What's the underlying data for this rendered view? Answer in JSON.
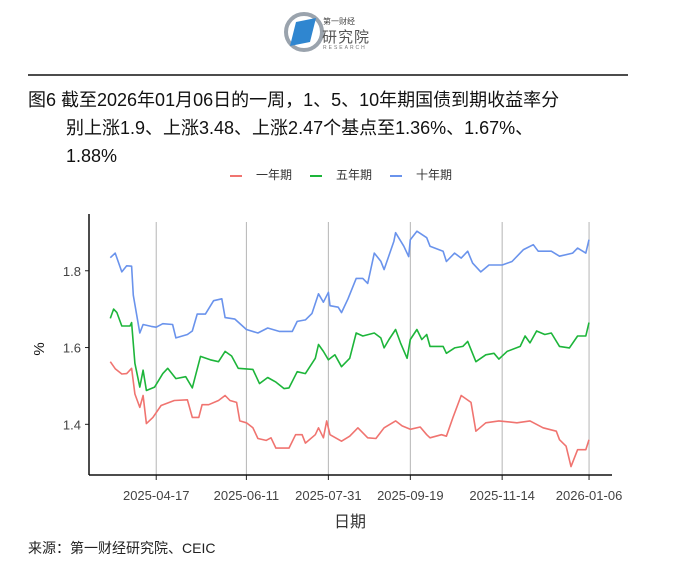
{
  "header": {
    "logo_top": "第一财经",
    "logo_main": "研究院",
    "logo_sub": "RESEARCH"
  },
  "title": {
    "line1": "图6  截至2026年01月06日的一周，1、5、10年期国债到期收益率分",
    "line2": "别上涨1.9、上涨3.48、上涨2.47个基点至1.36%、1.67%、",
    "line3": "1.88%"
  },
  "source": "来源：第一财经研究院、CEIC",
  "chart_data": {
    "type": "line",
    "xlabel": "日期",
    "ylabel": "%",
    "xlim": [
      "2025-03-07",
      "2026-01-20"
    ],
    "ylim": [
      1.268,
      1.927
    ],
    "x_ticks": [
      "2025-04-17",
      "2025-06-11",
      "2025-07-31",
      "2025-09-19",
      "2025-11-14",
      "2026-01-06"
    ],
    "y_ticks": [
      1.4,
      1.6,
      1.8
    ],
    "grid": "vertical major",
    "legend": "top",
    "series": [
      {
        "name": "一年期",
        "color": "#f07470",
        "points": [
          [
            "2025-03-20",
            1.563
          ],
          [
            "2025-03-23",
            1.545
          ],
          [
            "2025-03-27",
            1.531
          ],
          [
            "2025-03-30",
            1.532
          ],
          [
            "2025-04-02",
            1.546
          ],
          [
            "2025-04-04",
            1.479
          ],
          [
            "2025-04-07",
            1.444
          ],
          [
            "2025-04-09",
            1.475
          ],
          [
            "2025-04-11",
            1.402
          ],
          [
            "2025-04-15",
            1.418
          ],
          [
            "2025-04-20",
            1.449
          ],
          [
            "2025-04-28",
            1.462
          ],
          [
            "2025-05-06",
            1.464
          ],
          [
            "2025-05-09",
            1.418
          ],
          [
            "2025-05-13",
            1.418
          ],
          [
            "2025-05-15",
            1.451
          ],
          [
            "2025-05-19",
            1.451
          ],
          [
            "2025-05-25",
            1.462
          ],
          [
            "2025-05-29",
            1.475
          ],
          [
            "2025-06-01",
            1.462
          ],
          [
            "2025-06-05",
            1.457
          ],
          [
            "2025-06-07",
            1.409
          ],
          [
            "2025-06-11",
            1.404
          ],
          [
            "2025-06-15",
            1.391
          ],
          [
            "2025-06-18",
            1.363
          ],
          [
            "2025-06-23",
            1.358
          ],
          [
            "2025-06-26",
            1.365
          ],
          [
            "2025-06-29",
            1.338
          ],
          [
            "2025-07-07",
            1.338
          ],
          [
            "2025-07-11",
            1.373
          ],
          [
            "2025-07-15",
            1.373
          ],
          [
            "2025-07-17",
            1.351
          ],
          [
            "2025-07-23",
            1.373
          ],
          [
            "2025-07-25",
            1.391
          ],
          [
            "2025-07-28",
            1.365
          ],
          [
            "2025-07-30",
            1.409
          ],
          [
            "2025-08-01",
            1.373
          ],
          [
            "2025-08-08",
            1.356
          ],
          [
            "2025-08-13",
            1.369
          ],
          [
            "2025-08-18",
            1.391
          ],
          [
            "2025-08-24",
            1.365
          ],
          [
            "2025-08-29",
            1.363
          ],
          [
            "2025-09-03",
            1.391
          ],
          [
            "2025-09-10",
            1.409
          ],
          [
            "2025-09-14",
            1.396
          ],
          [
            "2025-09-19",
            1.387
          ],
          [
            "2025-09-25",
            1.393
          ],
          [
            "2025-09-29",
            1.373
          ],
          [
            "2025-10-01",
            1.365
          ],
          [
            "2025-10-08",
            1.373
          ],
          [
            "2025-10-11",
            1.369
          ],
          [
            "2025-10-15",
            1.418
          ],
          [
            "2025-10-20",
            1.475
          ],
          [
            "2025-10-26",
            1.457
          ],
          [
            "2025-10-29",
            1.382
          ],
          [
            "2025-11-04",
            1.404
          ],
          [
            "2025-11-12",
            1.409
          ],
          [
            "2025-11-23",
            1.404
          ],
          [
            "2025-12-01",
            1.409
          ],
          [
            "2025-12-09",
            1.391
          ],
          [
            "2025-12-17",
            1.382
          ],
          [
            "2025-12-19",
            1.36
          ],
          [
            "2025-12-23",
            1.343
          ],
          [
            "2025-12-26",
            1.29
          ],
          [
            "2025-12-30",
            1.334
          ],
          [
            "2026-01-04",
            1.334
          ],
          [
            "2026-01-06",
            1.36
          ]
        ]
      },
      {
        "name": "五年期",
        "color": "#1db53a",
        "points": [
          [
            "2025-03-20",
            1.676
          ],
          [
            "2025-03-22",
            1.7
          ],
          [
            "2025-03-24",
            1.691
          ],
          [
            "2025-03-27",
            1.656
          ],
          [
            "2025-04-01",
            1.656
          ],
          [
            "2025-04-02",
            1.665
          ],
          [
            "2025-04-04",
            1.559
          ],
          [
            "2025-04-07",
            1.497
          ],
          [
            "2025-04-09",
            1.541
          ],
          [
            "2025-04-11",
            1.488
          ],
          [
            "2025-04-16",
            1.497
          ],
          [
            "2025-04-21",
            1.532
          ],
          [
            "2025-04-24",
            1.546
          ],
          [
            "2025-04-29",
            1.519
          ],
          [
            "2025-05-05",
            1.524
          ],
          [
            "2025-05-09",
            1.495
          ],
          [
            "2025-05-14",
            1.577
          ],
          [
            "2025-05-20",
            1.568
          ],
          [
            "2025-05-25",
            1.563
          ],
          [
            "2025-05-29",
            1.59
          ],
          [
            "2025-06-02",
            1.578
          ],
          [
            "2025-06-06",
            1.546
          ],
          [
            "2025-06-15",
            1.543
          ],
          [
            "2025-06-19",
            1.506
          ],
          [
            "2025-06-24",
            1.522
          ],
          [
            "2025-06-29",
            1.51
          ],
          [
            "2025-07-04",
            1.493
          ],
          [
            "2025-07-07",
            1.495
          ],
          [
            "2025-07-12",
            1.537
          ],
          [
            "2025-07-17",
            1.532
          ],
          [
            "2025-07-23",
            1.572
          ],
          [
            "2025-07-25",
            1.608
          ],
          [
            "2025-07-28",
            1.59
          ],
          [
            "2025-07-31",
            1.568
          ],
          [
            "2025-08-04",
            1.581
          ],
          [
            "2025-08-08",
            1.55
          ],
          [
            "2025-08-13",
            1.572
          ],
          [
            "2025-08-17",
            1.638
          ],
          [
            "2025-08-21",
            1.63
          ],
          [
            "2025-08-28",
            1.638
          ],
          [
            "2025-09-01",
            1.625
          ],
          [
            "2025-09-03",
            1.599
          ],
          [
            "2025-09-06",
            1.621
          ],
          [
            "2025-09-10",
            1.647
          ],
          [
            "2025-09-13",
            1.612
          ],
          [
            "2025-09-17",
            1.572
          ],
          [
            "2025-09-19",
            1.621
          ],
          [
            "2025-09-23",
            1.647
          ],
          [
            "2025-09-26",
            1.621
          ],
          [
            "2025-09-29",
            1.634
          ],
          [
            "2025-10-01",
            1.603
          ],
          [
            "2025-10-09",
            1.603
          ],
          [
            "2025-10-11",
            1.585
          ],
          [
            "2025-10-16",
            1.599
          ],
          [
            "2025-10-21",
            1.603
          ],
          [
            "2025-10-24",
            1.616
          ],
          [
            "2025-10-29",
            1.563
          ],
          [
            "2025-11-04",
            1.581
          ],
          [
            "2025-11-09",
            1.585
          ],
          [
            "2025-11-12",
            1.57
          ],
          [
            "2025-11-17",
            1.59
          ],
          [
            "2025-11-25",
            1.603
          ],
          [
            "2025-11-28",
            1.63
          ],
          [
            "2025-12-01",
            1.612
          ],
          [
            "2025-12-05",
            1.643
          ],
          [
            "2025-12-10",
            1.634
          ],
          [
            "2025-12-14",
            1.638
          ],
          [
            "2025-12-19",
            1.603
          ],
          [
            "2025-12-25",
            1.599
          ],
          [
            "2025-12-30",
            1.63
          ],
          [
            "2026-01-04",
            1.63
          ],
          [
            "2026-01-06",
            1.665
          ]
        ]
      },
      {
        "name": "十年期",
        "color": "#6a93ec",
        "points": [
          [
            "2025-03-20",
            1.834
          ],
          [
            "2025-03-23",
            1.846
          ],
          [
            "2025-03-27",
            1.797
          ],
          [
            "2025-03-30",
            1.813
          ],
          [
            "2025-04-02",
            1.812
          ],
          [
            "2025-04-03",
            1.736
          ],
          [
            "2025-04-07",
            1.638
          ],
          [
            "2025-04-09",
            1.66
          ],
          [
            "2025-04-14",
            1.655
          ],
          [
            "2025-04-17",
            1.653
          ],
          [
            "2025-04-21",
            1.662
          ],
          [
            "2025-04-27",
            1.66
          ],
          [
            "2025-04-29",
            1.625
          ],
          [
            "2025-05-06",
            1.634
          ],
          [
            "2025-05-09",
            1.643
          ],
          [
            "2025-05-12",
            1.687
          ],
          [
            "2025-05-17",
            1.687
          ],
          [
            "2025-05-22",
            1.722
          ],
          [
            "2025-05-27",
            1.727
          ],
          [
            "2025-05-29",
            1.678
          ],
          [
            "2025-06-04",
            1.674
          ],
          [
            "2025-06-11",
            1.647
          ],
          [
            "2025-06-18",
            1.638
          ],
          [
            "2025-06-24",
            1.651
          ],
          [
            "2025-07-01",
            1.642
          ],
          [
            "2025-07-09",
            1.642
          ],
          [
            "2025-07-12",
            1.668
          ],
          [
            "2025-07-17",
            1.672
          ],
          [
            "2025-07-21",
            1.689
          ],
          [
            "2025-07-25",
            1.74
          ],
          [
            "2025-07-28",
            1.718
          ],
          [
            "2025-07-31",
            1.744
          ],
          [
            "2025-08-01",
            1.709
          ],
          [
            "2025-08-06",
            1.705
          ],
          [
            "2025-08-08",
            1.691
          ],
          [
            "2025-08-12",
            1.727
          ],
          [
            "2025-08-17",
            1.78
          ],
          [
            "2025-08-21",
            1.78
          ],
          [
            "2025-08-24",
            1.767
          ],
          [
            "2025-08-28",
            1.846
          ],
          [
            "2025-09-01",
            1.825
          ],
          [
            "2025-09-03",
            1.803
          ],
          [
            "2025-09-09",
            1.877
          ],
          [
            "2025-09-10",
            1.899
          ],
          [
            "2025-09-15",
            1.864
          ],
          [
            "2025-09-18",
            1.837
          ],
          [
            "2025-09-19",
            1.881
          ],
          [
            "2025-09-23",
            1.903
          ],
          [
            "2025-09-29",
            1.886
          ],
          [
            "2025-10-01",
            1.864
          ],
          [
            "2025-10-09",
            1.851
          ],
          [
            "2025-10-11",
            1.824
          ],
          [
            "2025-10-16",
            1.846
          ],
          [
            "2025-10-20",
            1.833
          ],
          [
            "2025-10-24",
            1.851
          ],
          [
            "2025-10-27",
            1.82
          ],
          [
            "2025-11-01",
            1.797
          ],
          [
            "2025-11-06",
            1.815
          ],
          [
            "2025-11-14",
            1.815
          ],
          [
            "2025-11-20",
            1.824
          ],
          [
            "2025-11-27",
            1.855
          ],
          [
            "2025-12-03",
            1.868
          ],
          [
            "2025-12-06",
            1.851
          ],
          [
            "2025-12-14",
            1.851
          ],
          [
            "2025-12-19",
            1.838
          ],
          [
            "2025-12-27",
            1.846
          ],
          [
            "2025-12-30",
            1.859
          ],
          [
            "2026-01-04",
            1.846
          ],
          [
            "2026-01-06",
            1.881
          ]
        ]
      }
    ]
  }
}
